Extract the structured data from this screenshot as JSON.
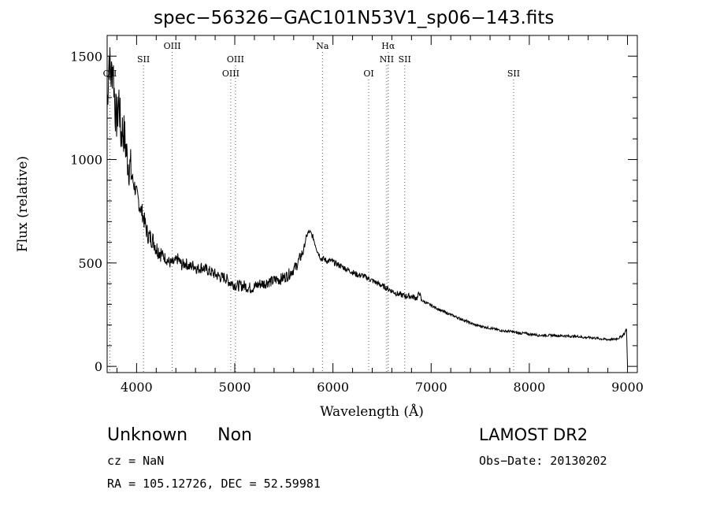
{
  "header": {
    "title": "spec−56326−GAC101N53V1_sp06−143.fits"
  },
  "footer": {
    "class_label": "Unknown",
    "subclass_label": "Non",
    "survey": "LAMOST DR2",
    "cz": "cz = NaN",
    "obs_date": "Obs−Date: 20130202",
    "radec": "RA = 105.12726, DEC =  52.59981"
  },
  "chart_data": {
    "type": "line",
    "title": "spec−56326−GAC101N53V1_sp06−143.fits",
    "xlabel": "Wavelength (Å)",
    "ylabel": "Flux (relative)",
    "xlim": [
      3700,
      9100
    ],
    "ylim": [
      -30,
      1600
    ],
    "x_ticks": [
      4000,
      5000,
      6000,
      7000,
      8000,
      9000
    ],
    "y_ticks": [
      0,
      500,
      1000,
      1500
    ],
    "grid": false,
    "series": [
      {
        "x": [
          3700,
          3720,
          3740,
          3760,
          3780,
          3800,
          3820,
          3840,
          3860,
          3880,
          3900,
          3920,
          3940,
          3960,
          3980,
          4000,
          4020,
          4040,
          4060,
          4080,
          4100,
          4120,
          4150,
          4180,
          4200,
          4230,
          4260,
          4300,
          4340,
          4380,
          4420,
          4460,
          4500,
          4540,
          4580,
          4620,
          4660,
          4700,
          4740,
          4780,
          4820,
          4860,
          4900,
          4940,
          4980,
          5020,
          5060,
          5100,
          5140,
          5180,
          5220,
          5260,
          5300,
          5340,
          5380,
          5420,
          5460,
          5500,
          5540,
          5580,
          5620,
          5660,
          5700,
          5720,
          5740,
          5760,
          5780,
          5800,
          5820,
          5840,
          5860,
          5880,
          5900,
          5940,
          5980,
          6020,
          6060,
          6100,
          6140,
          6180,
          6220,
          6260,
          6300,
          6340,
          6380,
          6420,
          6460,
          6500,
          6540,
          6580,
          6620,
          6660,
          6700,
          6740,
          6780,
          6820,
          6860,
          6880,
          6900,
          6940,
          6980,
          7020,
          7060,
          7100,
          7150,
          7200,
          7250,
          7300,
          7350,
          7400,
          7450,
          7500,
          7550,
          7600,
          7650,
          7700,
          7750,
          7800,
          7850,
          7900,
          7950,
          8000,
          8050,
          8100,
          8150,
          8200,
          8250,
          8300,
          8350,
          8400,
          8450,
          8500,
          8550,
          8600,
          8650,
          8700,
          8750,
          8800,
          8850,
          8900,
          8940,
          8970,
          8990,
          9000
        ],
        "values": [
          1250,
          1500,
          1400,
          1460,
          1250,
          1180,
          1300,
          1120,
          1150,
          1100,
          1020,
          980,
          950,
          900,
          870,
          830,
          800,
          760,
          740,
          700,
          660,
          630,
          620,
          600,
          570,
          560,
          540,
          520,
          500,
          500,
          520,
          490,
          500,
          480,
          490,
          470,
          480,
          470,
          460,
          450,
          440,
          430,
          430,
          410,
          400,
          390,
          390,
          390,
          380,
          380,
          390,
          400,
          400,
          410,
          410,
          420,
          420,
          430,
          440,
          460,
          480,
          520,
          560,
          610,
          640,
          650,
          640,
          620,
          590,
          560,
          540,
          520,
          520,
          510,
          510,
          500,
          490,
          480,
          470,
          460,
          450,
          440,
          440,
          430,
          420,
          410,
          400,
          390,
          380,
          370,
          360,
          350,
          345,
          340,
          340,
          335,
          330,
          360,
          320,
          310,
          300,
          290,
          280,
          270,
          260,
          250,
          240,
          230,
          220,
          210,
          200,
          195,
          190,
          185,
          180,
          175,
          170,
          170,
          165,
          160,
          160,
          155,
          155,
          150,
          150,
          150,
          150,
          148,
          148,
          146,
          145,
          145,
          140,
          140,
          138,
          135,
          132,
          130,
          130,
          135,
          145,
          160,
          180,
          10
        ]
      }
    ],
    "spectral_lines": [
      {
        "label": "OII",
        "x": 3728,
        "row": 2
      },
      {
        "label": "SII",
        "x": 4070,
        "row": 1
      },
      {
        "label": "OIII",
        "x": 4363,
        "row": 0
      },
      {
        "label": "OIII",
        "x": 4959,
        "row": 2
      },
      {
        "label": "OIII",
        "x": 5007,
        "row": 1
      },
      {
        "label": "Na",
        "x": 5893,
        "row": 0
      },
      {
        "label": "OI",
        "x": 6364,
        "row": 2
      },
      {
        "label": "Hα",
        "x": 6563,
        "row": 0
      },
      {
        "label": "NII",
        "x": 6548,
        "row": 1
      },
      {
        "label": "SII",
        "x": 6731,
        "row": 1
      },
      {
        "label": "SII",
        "x": 7840,
        "row": 2
      }
    ]
  }
}
